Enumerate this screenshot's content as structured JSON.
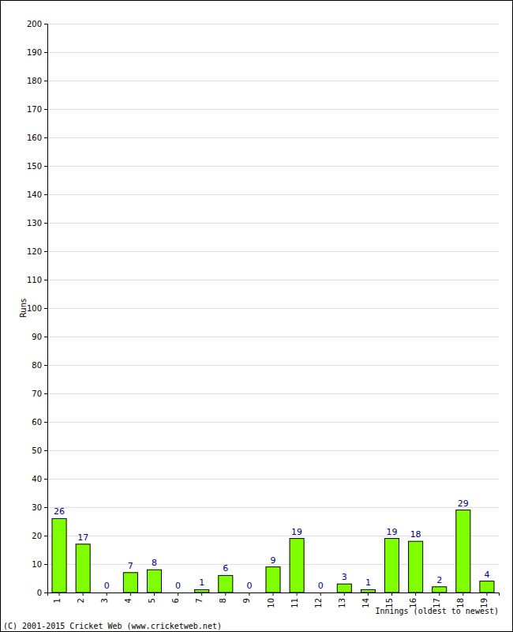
{
  "chart_data": {
    "type": "bar",
    "x_label": "Innings (oldest to newest)",
    "y_label": "Runs",
    "annotations": [
      "(C) 2001-2015 Cricket Web (www.cricketweb.net)"
    ],
    "categories": [
      "1",
      "2",
      "3",
      "4",
      "5",
      "6",
      "7",
      "8",
      "9",
      "10",
      "11",
      "12",
      "13",
      "14",
      "15",
      "16",
      "17",
      "18",
      "19"
    ],
    "values": [
      26,
      17,
      0,
      7,
      8,
      0,
      1,
      6,
      0,
      9,
      19,
      0,
      3,
      1,
      19,
      18,
      2,
      29,
      4
    ],
    "color": "#80ff00",
    "ylim": [
      0,
      200
    ],
    "yticks": [
      0,
      10,
      20,
      30,
      40,
      50,
      60,
      70,
      80,
      90,
      100,
      110,
      120,
      130,
      140,
      150,
      160,
      170,
      180,
      190,
      200
    ],
    "grid": true,
    "data_labels": true
  }
}
